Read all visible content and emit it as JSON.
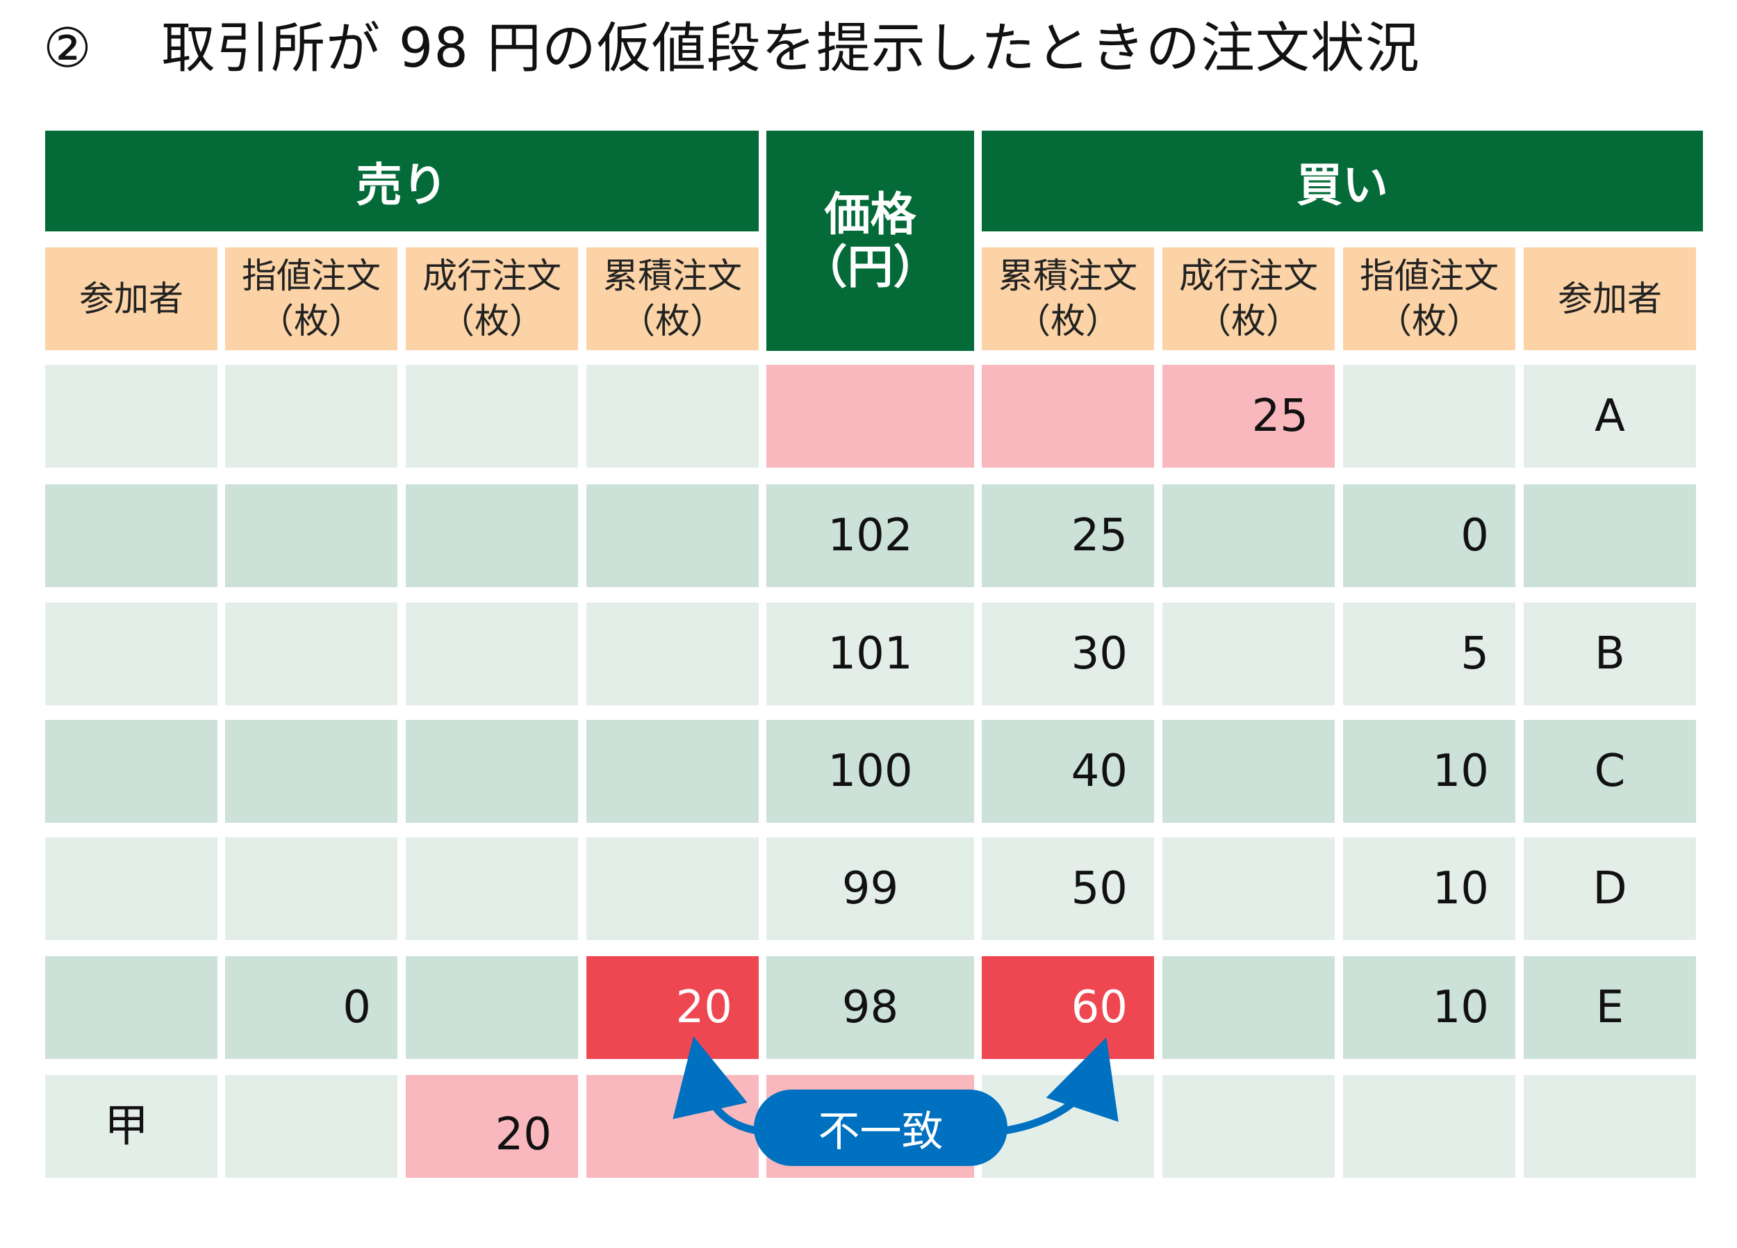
{
  "title": {
    "number": "②",
    "text": "取引所が 98 円の仮値段を提示したときの注文状況"
  },
  "header": {
    "sell": "売り",
    "price_line1": "価格",
    "price_line2": "（円）",
    "buy": "買い"
  },
  "columns": {
    "sell": [
      {
        "line1": "参加者",
        "line2": ""
      },
      {
        "line1": "指値注文",
        "line2": "（枚）"
      },
      {
        "line1": "成行注文",
        "line2": "（枚）"
      },
      {
        "line1": "累積注文",
        "line2": "（枚）"
      }
    ],
    "buy": [
      {
        "line1": "累積注文",
        "line2": "（枚）"
      },
      {
        "line1": "成行注文",
        "line2": "（枚）"
      },
      {
        "line1": "指値注文",
        "line2": "（枚）"
      },
      {
        "line1": "参加者",
        "line2": ""
      }
    ]
  },
  "rows": [
    [
      "",
      "",
      "",
      "",
      "",
      "",
      "25",
      "",
      "A"
    ],
    [
      "",
      "",
      "",
      "",
      "102",
      "25",
      "",
      "0",
      ""
    ],
    [
      "",
      "",
      "",
      "",
      "101",
      "30",
      "",
      "5",
      "B"
    ],
    [
      "",
      "",
      "",
      "",
      "100",
      "40",
      "",
      "10",
      "C"
    ],
    [
      "",
      "",
      "",
      "",
      "99",
      "50",
      "",
      "10",
      "D"
    ],
    [
      "",
      "0",
      "",
      "20",
      "98",
      "60",
      "",
      "10",
      "E"
    ],
    [
      "甲",
      "",
      "20",
      "",
      "",
      "",
      "",
      "",
      ""
    ]
  ],
  "annotation": {
    "label": "不一致"
  },
  "colors": {
    "header_green": "#036a38",
    "subheader_orange": "#fbd3a6",
    "row_light": "#e4eee9",
    "row_dark": "#cce1d8",
    "market_pink": "#f8b8bd",
    "highlight_red": "#ef4751",
    "badge_blue": "#0070c0"
  }
}
